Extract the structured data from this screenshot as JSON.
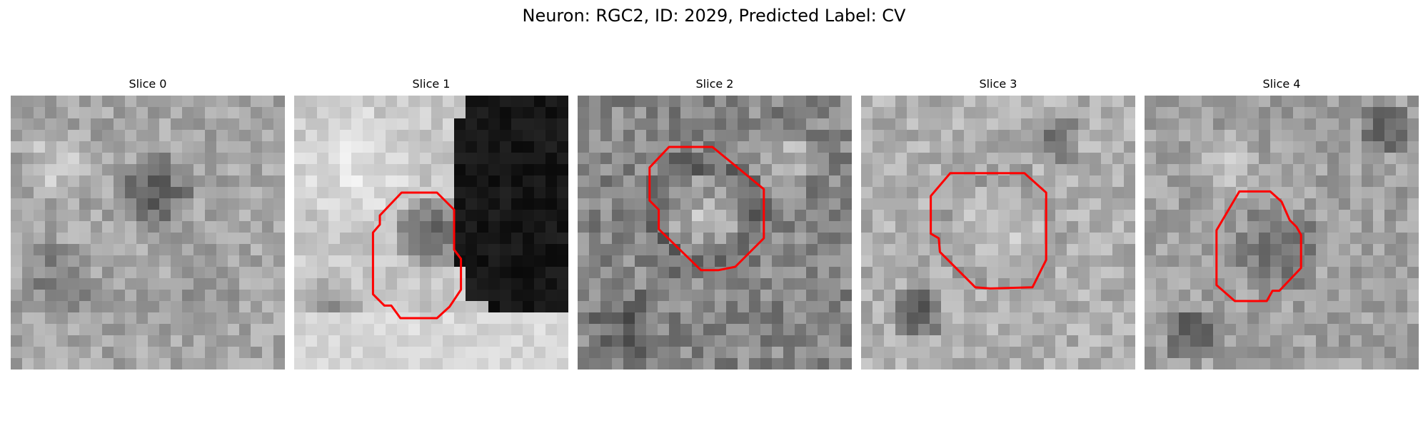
{
  "figure": {
    "title": "Neuron: RGC2, ID: 2029, Predicted Label: CV"
  },
  "panels": [
    {
      "title": "Slice 0",
      "contour_shown": false
    },
    {
      "title": "Slice 1",
      "contour_shown": true
    },
    {
      "title": "Slice 2",
      "contour_shown": true
    },
    {
      "title": "Slice 3",
      "contour_shown": true
    },
    {
      "title": "Slice 4",
      "contour_shown": true
    }
  ],
  "colors": {
    "contour": "#ff0000",
    "image_colormap": "grayscale"
  }
}
